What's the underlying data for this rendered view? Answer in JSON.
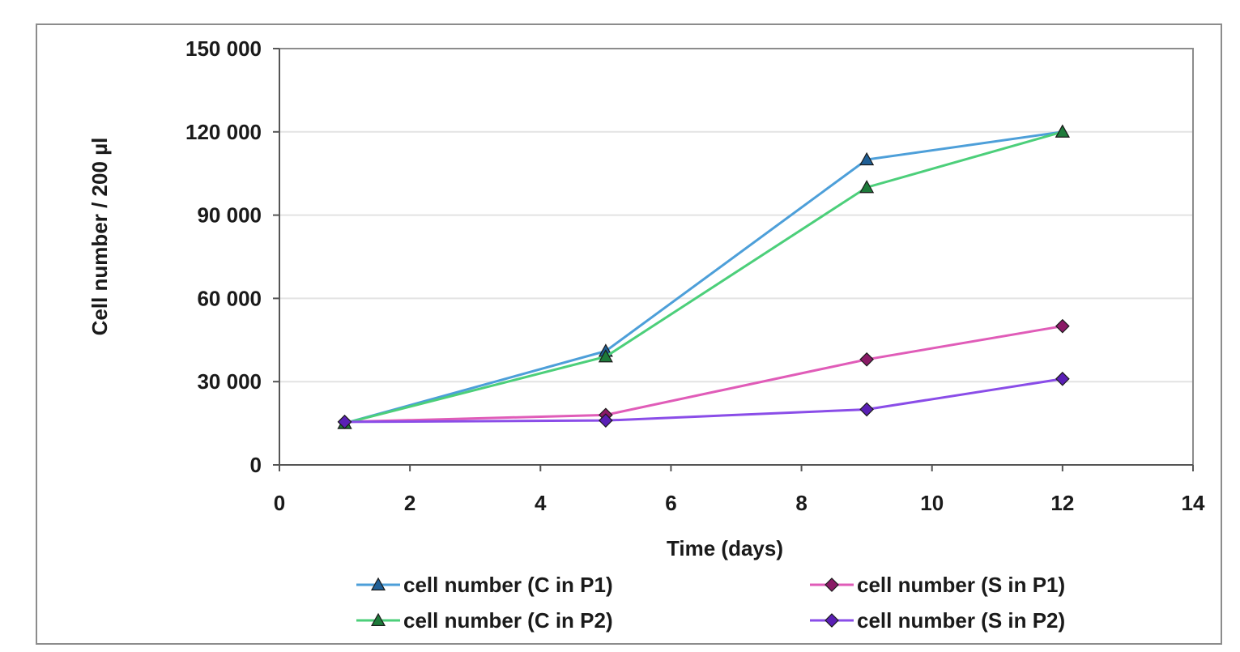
{
  "chart_data": {
    "type": "line",
    "title": "",
    "xlabel": "Time (days)",
    "ylabel": "Cell number / 200 µl",
    "xlim": [
      0,
      14
    ],
    "ylim": [
      0,
      150000
    ],
    "xticks": [
      0,
      2,
      4,
      6,
      8,
      10,
      12,
      14
    ],
    "yticks": [
      0,
      30000,
      60000,
      90000,
      120000,
      150000
    ],
    "xtick_labels": [
      "0",
      "2",
      "4",
      "6",
      "8",
      "10",
      "12",
      "14"
    ],
    "ytick_labels": [
      "0",
      "30 000",
      "60 000",
      "90 000",
      "120 000",
      "150 000"
    ],
    "grid": "horizontal",
    "legend_position": "bottom",
    "x": [
      1,
      5,
      9,
      12
    ],
    "series": [
      {
        "name": "cell number (C in P1)",
        "values": [
          15000,
          41000,
          110000,
          120000
        ],
        "color": "#4d9fd9",
        "marker": "triangle",
        "marker_color": "#1f5f96"
      },
      {
        "name": "cell number (S in P1)",
        "values": [
          15500,
          18000,
          38000,
          50000
        ],
        "color": "#e05cb8",
        "marker": "diamond",
        "marker_color": "#8a1a66"
      },
      {
        "name": "cell number (C in P2)",
        "values": [
          15000,
          39000,
          100000,
          120000
        ],
        "color": "#4ccf7a",
        "marker": "triangle",
        "marker_color": "#1e7a3a"
      },
      {
        "name": "cell number (S in P2)",
        "values": [
          15500,
          16000,
          20000,
          31000
        ],
        "color": "#8a4de8",
        "marker": "diamond",
        "marker_color": "#5a1fb5"
      }
    ]
  }
}
